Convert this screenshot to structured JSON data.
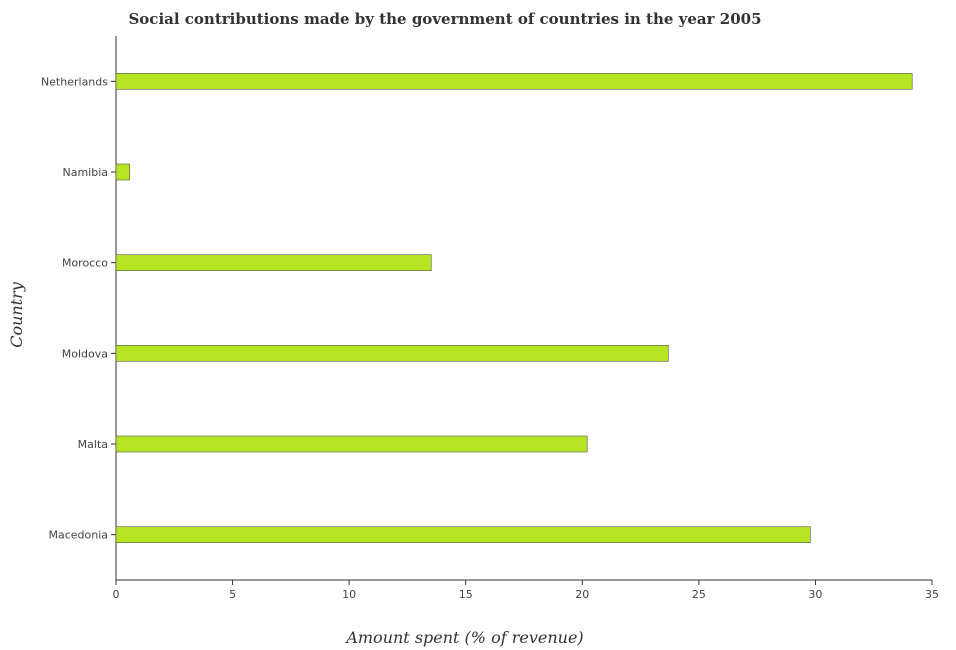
{
  "chart_data": {
    "type": "bar",
    "orientation": "horizontal",
    "title": "Social contributions made by the government of countries in the year 2005",
    "xlabel": "Amount spent (% of revenue)",
    "ylabel": "Country",
    "categories": [
      "Macedonia",
      "Malta",
      "Moldova",
      "Morocco",
      "Namibia",
      "Netherlands"
    ],
    "values": [
      29.78,
      20.21,
      23.69,
      13.52,
      0.59,
      34.15
    ],
    "xlim": [
      0,
      35
    ],
    "xticks": [
      0,
      5,
      10,
      15,
      20,
      25,
      30,
      35
    ],
    "grid": false,
    "bar_color": "#b6e523"
  }
}
